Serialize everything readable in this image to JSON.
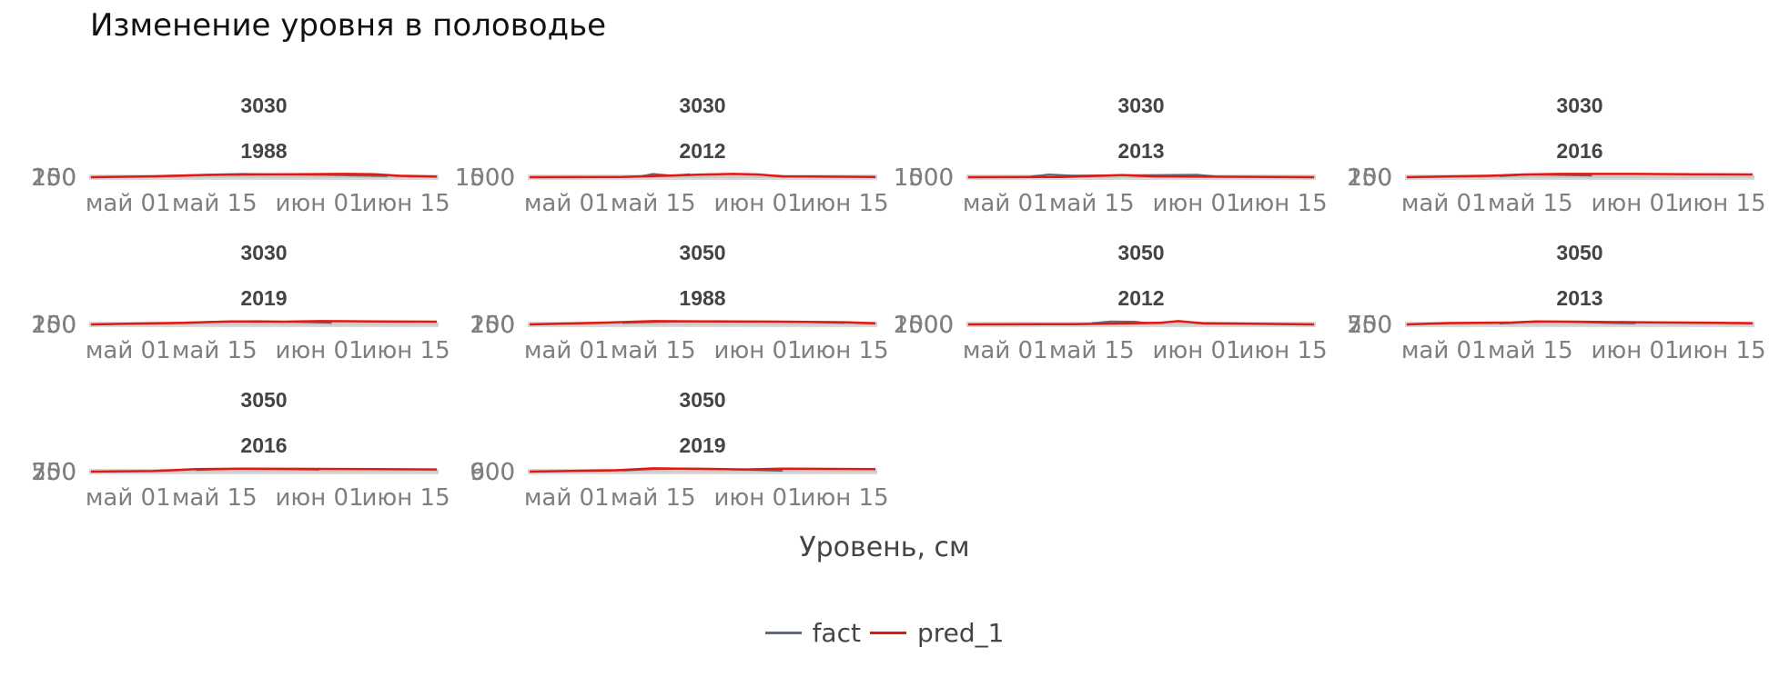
{
  "chart_data": {
    "type": "line",
    "title": "Изменение уровня в половодье",
    "xlabel": "Уровень, см",
    "x_ticks": [
      "май 01",
      "май 15",
      "июн 01",
      "июн 15"
    ],
    "legend": {
      "placement": "bottom",
      "items": [
        {
          "name": "fact",
          "color": "#5b6b7a"
        },
        {
          "name": "pred_1",
          "color": "#e8170d"
        }
      ]
    },
    "panels": [
      {
        "station": "3030",
        "year": "1988",
        "y_ticks": [
          "100",
          "150",
          "200",
          "250"
        ],
        "series": [
          {
            "name": "fact",
            "x": [
              "2020-05-07",
              "2020-05-12",
              "2020-05-15",
              "2020-05-20",
              "2020-05-25",
              "2020-05-30",
              "2020-06-05",
              "2020-06-12"
            ],
            "y": [
              0.5,
              0.8,
              1.0,
              1.2,
              1.0,
              0.9,
              0.7,
              0.4
            ]
          },
          {
            "name": "pred_1",
            "x": [
              "2020-04-25",
              "2020-05-05",
              "2020-05-13",
              "2020-05-20",
              "2020-05-28",
              "2020-06-05",
              "2020-06-10",
              "2020-06-14",
              "2020-06-20"
            ],
            "y": [
              0.0,
              0.3,
              0.8,
              1.0,
              1.1,
              1.2,
              1.1,
              0.5,
              0.2
            ]
          }
        ]
      },
      {
        "station": "3030",
        "year": "2012",
        "y_ticks": [
          "1000",
          "1500"
        ],
        "series": [
          {
            "name": "fact",
            "x": [
              "2020-05-13",
              "2020-05-15",
              "2020-05-18",
              "2020-05-21"
            ],
            "y": [
              0.3,
              1.2,
              0.6,
              1.1
            ]
          },
          {
            "name": "pred_1",
            "x": [
              "2020-04-25",
              "2020-05-10",
              "2020-05-22",
              "2020-05-28",
              "2020-06-01",
              "2020-06-05",
              "2020-06-20"
            ],
            "y": [
              0.0,
              0.1,
              0.9,
              1.2,
              1.0,
              0.3,
              0.1
            ]
          }
        ]
      },
      {
        "station": "3030",
        "year": "2013",
        "y_ticks": [
          "1000",
          "1500"
        ],
        "series": [
          {
            "name": "fact",
            "x": [
              "2020-05-05",
              "2020-05-08",
              "2020-05-12",
              "2020-06-01",
              "2020-06-04"
            ],
            "y": [
              0.2,
              1.0,
              0.6,
              0.9,
              0.3
            ]
          },
          {
            "name": "pred_1",
            "x": [
              "2020-04-25",
              "2020-05-10",
              "2020-05-20",
              "2020-05-25",
              "2020-06-20"
            ],
            "y": [
              0.0,
              0.1,
              0.8,
              0.3,
              0.0
            ]
          }
        ]
      },
      {
        "station": "3030",
        "year": "2016",
        "y_ticks": [
          "100",
          "150",
          "200",
          "250"
        ],
        "series": [
          {
            "name": "fact",
            "x": [
              "2020-05-10",
              "2020-05-15",
              "2020-05-20",
              "2020-05-25"
            ],
            "y": [
              0.4,
              1.0,
              0.8,
              0.6
            ]
          },
          {
            "name": "pred_1",
            "x": [
              "2020-04-25",
              "2020-05-08",
              "2020-05-14",
              "2020-05-20",
              "2020-06-01",
              "2020-06-10",
              "2020-06-20"
            ],
            "y": [
              0.0,
              0.5,
              1.0,
              1.2,
              1.2,
              1.1,
              1.0
            ]
          }
        ]
      },
      {
        "station": "3030",
        "year": "2019",
        "y_ticks": [
          "100",
          "150",
          "200",
          "250"
        ],
        "series": [
          {
            "name": "fact",
            "x": [
              "2020-05-08",
              "2020-05-15",
              "2020-05-22",
              "2020-05-28",
              "2020-06-03"
            ],
            "y": [
              0.5,
              1.0,
              1.2,
              0.9,
              0.6
            ]
          },
          {
            "name": "pred_1",
            "x": [
              "2020-04-25",
              "2020-05-10",
              "2020-05-18",
              "2020-05-26",
              "2020-06-01",
              "2020-06-10",
              "2020-06-20"
            ],
            "y": [
              0.0,
              0.6,
              1.1,
              1.0,
              1.2,
              1.1,
              1.0
            ]
          }
        ]
      },
      {
        "station": "3050",
        "year": "1988",
        "y_ticks": [
          "100",
          "150",
          "200",
          "250"
        ],
        "series": [
          {
            "name": "fact",
            "x": [
              "2020-05-10",
              "2020-05-18",
              "2020-05-25",
              "2020-06-05",
              "2020-06-15"
            ],
            "y": [
              0.6,
              1.0,
              1.2,
              1.0,
              0.6
            ]
          },
          {
            "name": "pred_1",
            "x": [
              "2020-04-25",
              "2020-05-08",
              "2020-05-15",
              "2020-05-25",
              "2020-06-05",
              "2020-06-15",
              "2020-06-20"
            ],
            "y": [
              0.0,
              0.7,
              1.2,
              1.1,
              1.0,
              0.8,
              0.4
            ]
          }
        ]
      },
      {
        "station": "3050",
        "year": "2012",
        "y_ticks": [
          "1000",
          "1500",
          "2000"
        ],
        "series": [
          {
            "name": "fact",
            "x": [
              "2020-05-15",
              "2020-05-18",
              "2020-05-22",
              "2020-05-24"
            ],
            "y": [
              0.4,
              1.1,
              1.0,
              0.5
            ]
          },
          {
            "name": "pred_1",
            "x": [
              "2020-04-25",
              "2020-05-12",
              "2020-05-26",
              "2020-05-29",
              "2020-06-02",
              "2020-06-20"
            ],
            "y": [
              0.0,
              0.1,
              0.6,
              1.2,
              0.4,
              0.0
            ]
          }
        ]
      },
      {
        "station": "3050",
        "year": "2013",
        "y_ticks": [
          "250",
          "500",
          "750"
        ],
        "series": [
          {
            "name": "fact",
            "x": [
              "2020-05-10",
              "2020-05-14",
              "2020-05-18",
              "2020-05-25",
              "2020-06-01"
            ],
            "y": [
              0.3,
              0.8,
              1.1,
              0.7,
              0.4
            ]
          },
          {
            "name": "pred_1",
            "x": [
              "2020-04-25",
              "2020-05-02",
              "2020-05-12",
              "2020-05-16",
              "2020-05-22",
              "2020-06-01",
              "2020-06-15",
              "2020-06-20"
            ],
            "y": [
              0.0,
              0.5,
              0.7,
              1.1,
              1.0,
              0.8,
              0.6,
              0.4
            ]
          }
        ]
      },
      {
        "station": "3050",
        "year": "2016",
        "y_ticks": [
          "250",
          "500",
          "750"
        ],
        "series": [
          {
            "name": "fact",
            "x": [
              "2020-05-12",
              "2020-05-18",
              "2020-05-25",
              "2020-06-01"
            ],
            "y": [
              0.6,
              1.0,
              0.9,
              0.7
            ]
          },
          {
            "name": "pred_1",
            "x": [
              "2020-04-25",
              "2020-05-05",
              "2020-05-12",
              "2020-05-20",
              "2020-06-01",
              "2020-06-10",
              "2020-06-20"
            ],
            "y": [
              0.0,
              0.2,
              0.9,
              1.1,
              1.0,
              0.9,
              0.8
            ]
          }
        ]
      },
      {
        "station": "3050",
        "year": "2019",
        "y_ticks": [
          "600",
          "900"
        ],
        "series": [
          {
            "name": "fact",
            "x": [
              "2020-05-10",
              "2020-05-15",
              "2020-05-22",
              "2020-06-01",
              "2020-06-05"
            ],
            "y": [
              0.4,
              0.9,
              1.1,
              0.6,
              0.3
            ]
          },
          {
            "name": "pred_1",
            "x": [
              "2020-04-25",
              "2020-05-09",
              "2020-05-15",
              "2020-05-24",
              "2020-05-30",
              "2020-06-05",
              "2020-06-20"
            ],
            "y": [
              0.0,
              0.5,
              1.2,
              1.0,
              0.8,
              1.1,
              0.9
            ]
          }
        ]
      }
    ]
  }
}
